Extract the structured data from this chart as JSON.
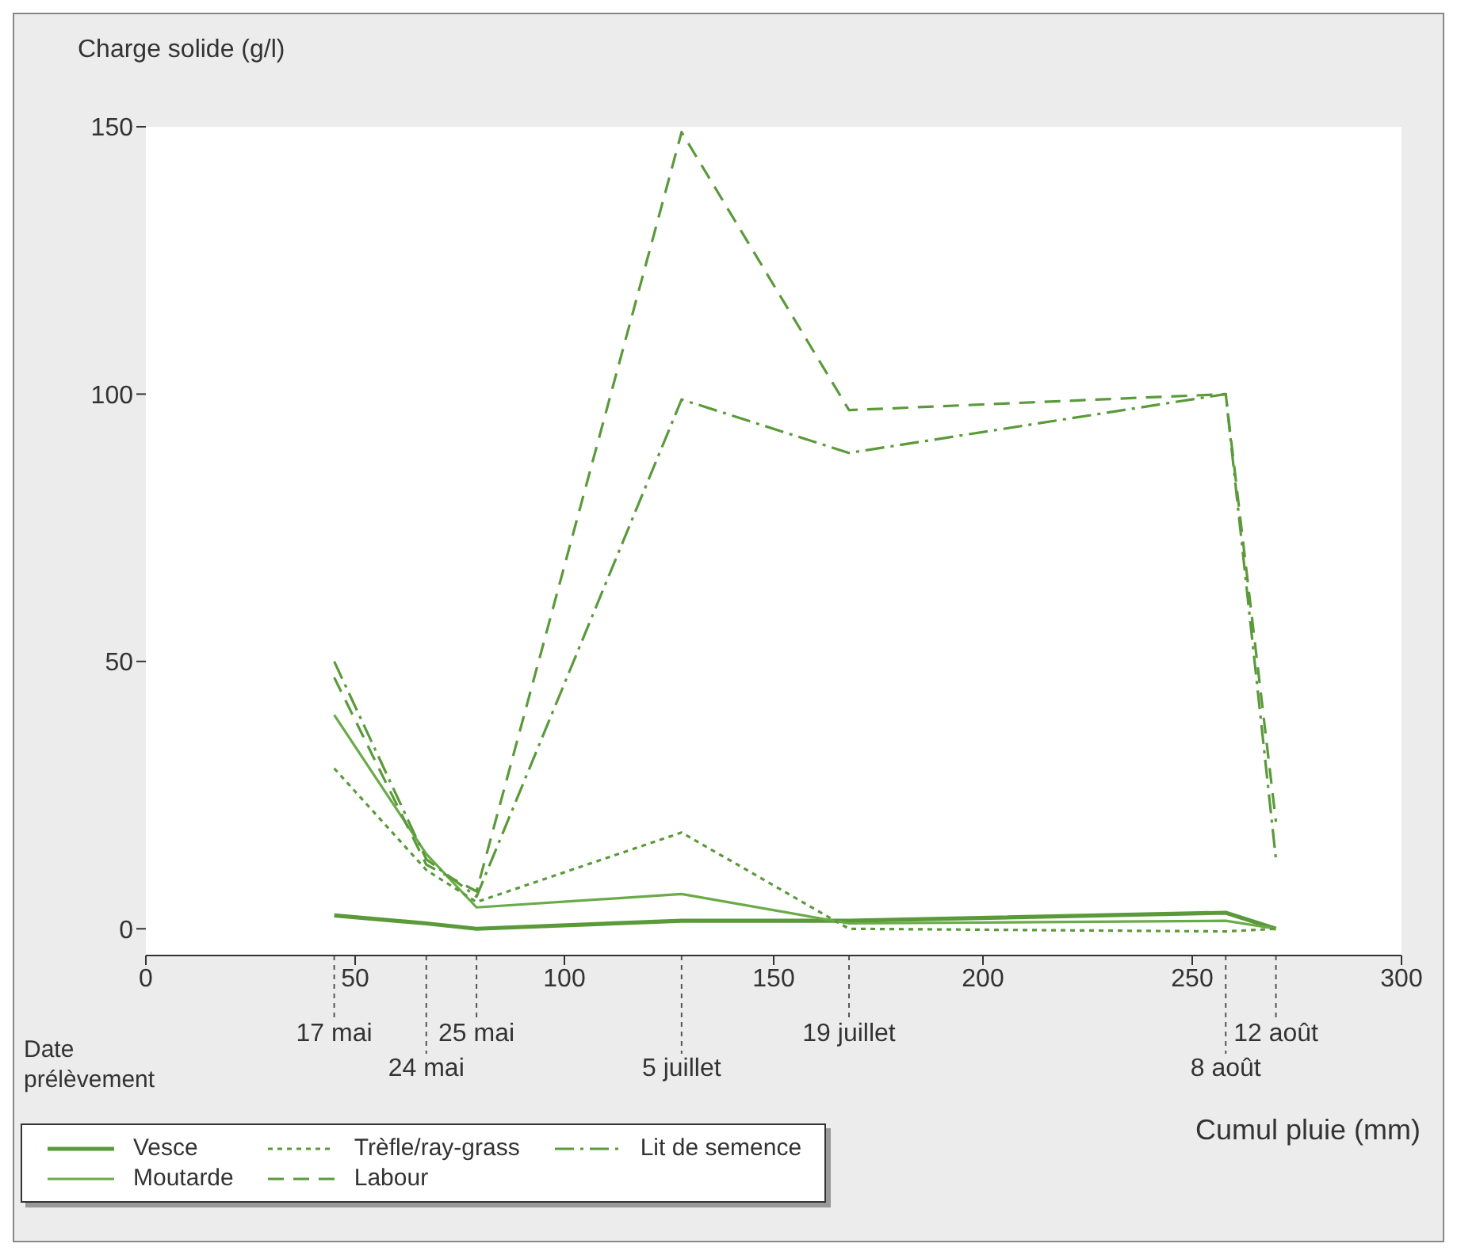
{
  "chart_data": {
    "type": "line",
    "ylabel": "Charge solide (g/l)",
    "xlabel": "Cumul pluie (mm)",
    "annotations": [
      "Date prélèvement"
    ],
    "x": [
      45,
      67,
      79,
      128,
      168,
      258,
      270
    ],
    "xlim": [
      0,
      300
    ],
    "xticks": [
      0,
      50,
      100,
      150,
      200,
      250,
      300
    ],
    "ylim": [
      -5,
      150
    ],
    "yticks": [
      0,
      50,
      100,
      150
    ],
    "grid": false,
    "legend": "bottom left",
    "marker": "none",
    "series": [
      {
        "name": "Vesce",
        "color": "#5a9a3a",
        "line_style": "solid",
        "values": [
          2.5,
          1,
          0,
          1.5,
          1.5,
          3,
          0
        ]
      },
      {
        "name": "Moutarde",
        "color": "#6aaa48",
        "line_style": "solid",
        "values": [
          40,
          14,
          4,
          6.5,
          1,
          1.5,
          0
        ]
      },
      {
        "name": "Trèfle/ray-grass",
        "color": "#5a9a3a",
        "line_style": "dotted",
        "values": [
          30,
          11,
          5,
          18,
          0,
          -0.5,
          0
        ]
      },
      {
        "name": "Labour",
        "color": "#5a9a3a",
        "line_style": "dashed",
        "values": [
          47,
          12,
          7,
          149,
          97,
          100,
          20
        ]
      },
      {
        "name": "Lit de semence",
        "color": "#5a9a3a",
        "line_style": "dashdot",
        "values": [
          50,
          13,
          6,
          99,
          89,
          100,
          13
        ]
      }
    ],
    "ref_lines": [
      {
        "axis": "x",
        "value": 45,
        "label": "17 mai",
        "line_style": "dotted"
      },
      {
        "axis": "x",
        "value": 67,
        "label": "24 mai",
        "line_style": "dotted"
      },
      {
        "axis": "x",
        "value": 79,
        "label": "25 mai",
        "line_style": "dotted"
      },
      {
        "axis": "x",
        "value": 128,
        "label": "5 juillet",
        "line_style": "dotted"
      },
      {
        "axis": "x",
        "value": 168,
        "label": "19 juillet",
        "line_style": "dotted"
      },
      {
        "axis": "x",
        "value": 258,
        "label": "8 août",
        "line_style": "dotted"
      },
      {
        "axis": "x",
        "value": 270,
        "label": "12 août",
        "line_style": "dotted"
      }
    ]
  }
}
